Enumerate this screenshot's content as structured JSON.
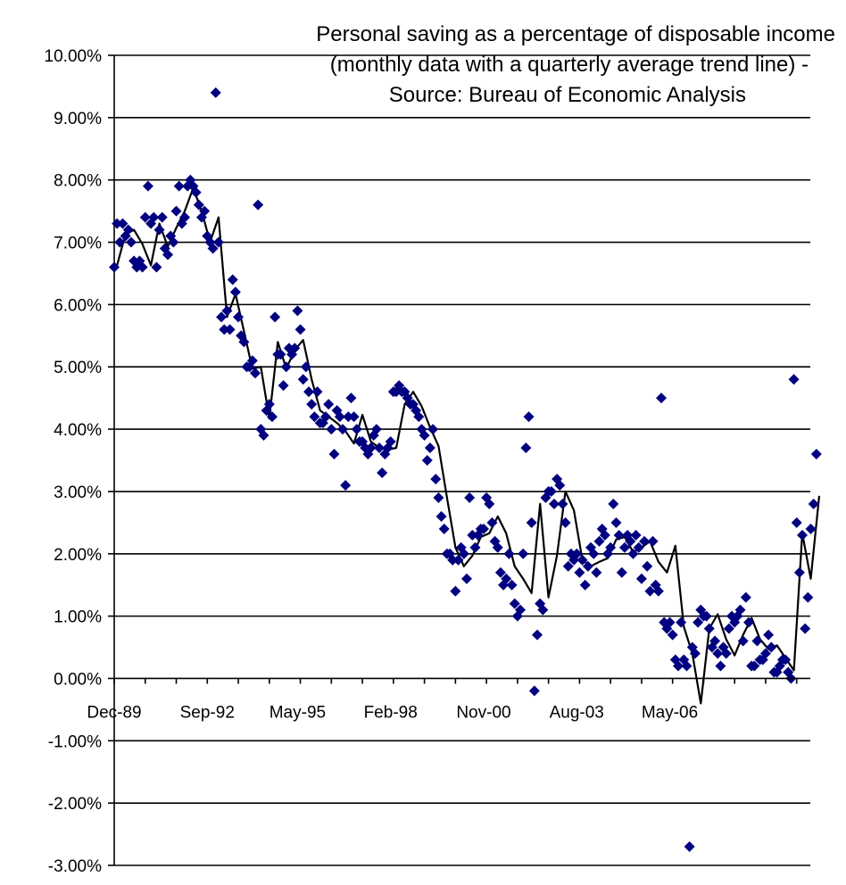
{
  "chart_data": {
    "type": "scatter",
    "title_lines": [
      "Personal saving as a percentage of disposable income",
      "(monthly data with a quarterly average trend line) -",
      "Source: Bureau of Economic Analysis"
    ],
    "ylim": [
      -3,
      10
    ],
    "y_ticks": [
      10,
      9,
      8,
      7,
      6,
      5,
      4,
      3,
      2,
      1,
      0,
      -1,
      -2,
      -3
    ],
    "y_tick_labels": [
      "10.00%",
      "9.00%",
      "8.00%",
      "7.00%",
      "6.00%",
      "5.00%",
      "4.00%",
      "3.00%",
      "2.00%",
      "1.00%",
      "0.00%",
      "-1.00%",
      "-2.00%",
      "-3.00%"
    ],
    "x_start": "Dec-89",
    "x_ticks": [
      {
        "label": "Dec-89",
        "month": 0
      },
      {
        "label": "Sep-92",
        "month": 33
      },
      {
        "label": "May-95",
        "month": 65
      },
      {
        "label": "Feb-98",
        "month": 98
      },
      {
        "label": "Nov-00",
        "month": 131
      },
      {
        "label": "Aug-03",
        "month": 164
      },
      {
        "label": "May-06",
        "month": 197
      }
    ],
    "grid": true,
    "legend": "none",
    "colors": {
      "points": "#000080",
      "trend": "#000000",
      "grid": "#000000"
    },
    "series": [
      {
        "kind": "monthly",
        "values": [
          6.6,
          7.3,
          7.0,
          7.3,
          7.1,
          7.2,
          7.0,
          6.7,
          6.6,
          6.7,
          6.6,
          7.4,
          7.9,
          7.3,
          7.4,
          6.6,
          7.2,
          7.4,
          6.9,
          6.8,
          7.1,
          7.0,
          7.5,
          7.9,
          7.3,
          7.4,
          7.9,
          8.0,
          7.9,
          7.8,
          7.6,
          7.4,
          7.5,
          7.1,
          7.0,
          6.9,
          9.4,
          7.0,
          5.8,
          5.6,
          5.9,
          5.6,
          6.4,
          6.2,
          5.8,
          5.5,
          5.4,
          5.0,
          5.0,
          5.1,
          4.9,
          7.6,
          4.0,
          3.9,
          4.3,
          4.4,
          4.2,
          5.8,
          5.2,
          5.2,
          4.7,
          5.0,
          5.3,
          5.2,
          5.3,
          5.9,
          5.6,
          4.8,
          5.0,
          4.6,
          4.4,
          4.2,
          4.6,
          4.1,
          4.1,
          4.2,
          4.4,
          4.0,
          3.6,
          4.3,
          4.2,
          4.0,
          3.1,
          4.2,
          4.5,
          4.2,
          4.0,
          3.8,
          3.8,
          3.7,
          3.6,
          3.7,
          3.9,
          4.0,
          3.7,
          3.3,
          3.6,
          3.7,
          3.8,
          4.6,
          4.6,
          4.7,
          4.6,
          4.6,
          4.5,
          4.4,
          4.4,
          4.3,
          4.2,
          4.0,
          3.9,
          3.5,
          3.7,
          4.0,
          3.2,
          2.9,
          2.6,
          2.4,
          2.0,
          2.0,
          1.9,
          1.4,
          1.9,
          2.1,
          2.0,
          1.6,
          2.9,
          2.3,
          2.1,
          2.3,
          2.4,
          2.4,
          2.9,
          2.8,
          2.5,
          2.2,
          2.1,
          1.7,
          1.5,
          1.6,
          2.0,
          1.5,
          1.2,
          1.0,
          1.1,
          2.0,
          3.7,
          4.2,
          2.5,
          -0.2,
          0.7,
          1.2,
          1.1,
          2.9,
          3.0,
          3.0,
          2.8,
          3.2,
          3.1,
          2.8,
          2.5,
          1.8,
          2.0,
          1.9,
          2.0,
          1.7,
          1.9,
          1.5,
          1.8,
          2.1,
          2.0,
          1.7,
          2.2,
          2.4,
          2.3,
          2.0,
          2.1,
          2.8,
          2.5,
          2.3,
          1.7,
          2.1,
          2.3,
          2.2,
          2.0,
          2.3,
          2.1,
          1.6,
          2.2,
          1.8,
          1.4,
          2.2,
          1.5,
          1.4,
          4.5,
          0.9,
          0.8,
          0.9,
          0.7,
          0.3,
          0.2,
          0.9,
          0.3,
          0.2,
          -2.7,
          0.5,
          0.4,
          0.9,
          1.1,
          1.0,
          1.0,
          0.8,
          0.5,
          0.6,
          0.4,
          0.2,
          0.5,
          0.4,
          0.8,
          1.0,
          0.9,
          1.0,
          1.1,
          0.6,
          1.3,
          0.9,
          0.2,
          0.2,
          0.6,
          0.3,
          0.3,
          0.4,
          0.7,
          0.5,
          0.1,
          0.1,
          0.2,
          0.3,
          0.3,
          0.1,
          0.0,
          4.8,
          2.5,
          1.7,
          2.3,
          0.8,
          1.3,
          2.4,
          2.8,
          3.6
        ]
      },
      {
        "kind": "quarterly-average",
        "values": [
          6.63,
          7.13,
          7.2,
          6.97,
          6.63,
          7.3,
          6.93,
          7.23,
          7.5,
          7.87,
          7.5,
          7.0,
          7.4,
          5.8,
          6.17,
          5.57,
          4.97,
          5.0,
          4.17,
          5.4,
          4.97,
          5.27,
          5.43,
          4.8,
          4.3,
          4.2,
          4.1,
          3.97,
          3.77,
          4.23,
          3.8,
          3.7,
          3.67,
          3.7,
          4.4,
          4.6,
          4.37,
          4.03,
          3.73,
          2.9,
          2.1,
          1.8,
          1.97,
          2.27,
          2.33,
          2.6,
          2.33,
          1.8,
          1.6,
          1.37,
          2.8,
          1.3,
          1.97,
          3.0,
          2.7,
          1.9,
          1.8,
          1.87,
          1.93,
          2.23,
          2.27,
          2.03,
          2.1,
          2.2,
          1.87,
          1.7,
          2.13,
          0.83,
          0.4,
          -0.4,
          0.8,
          1.03,
          0.63,
          0.37,
          0.7,
          0.97,
          0.63,
          0.47,
          0.53,
          0.33,
          0.13,
          2.33,
          1.6,
          2.93
        ]
      }
    ]
  }
}
